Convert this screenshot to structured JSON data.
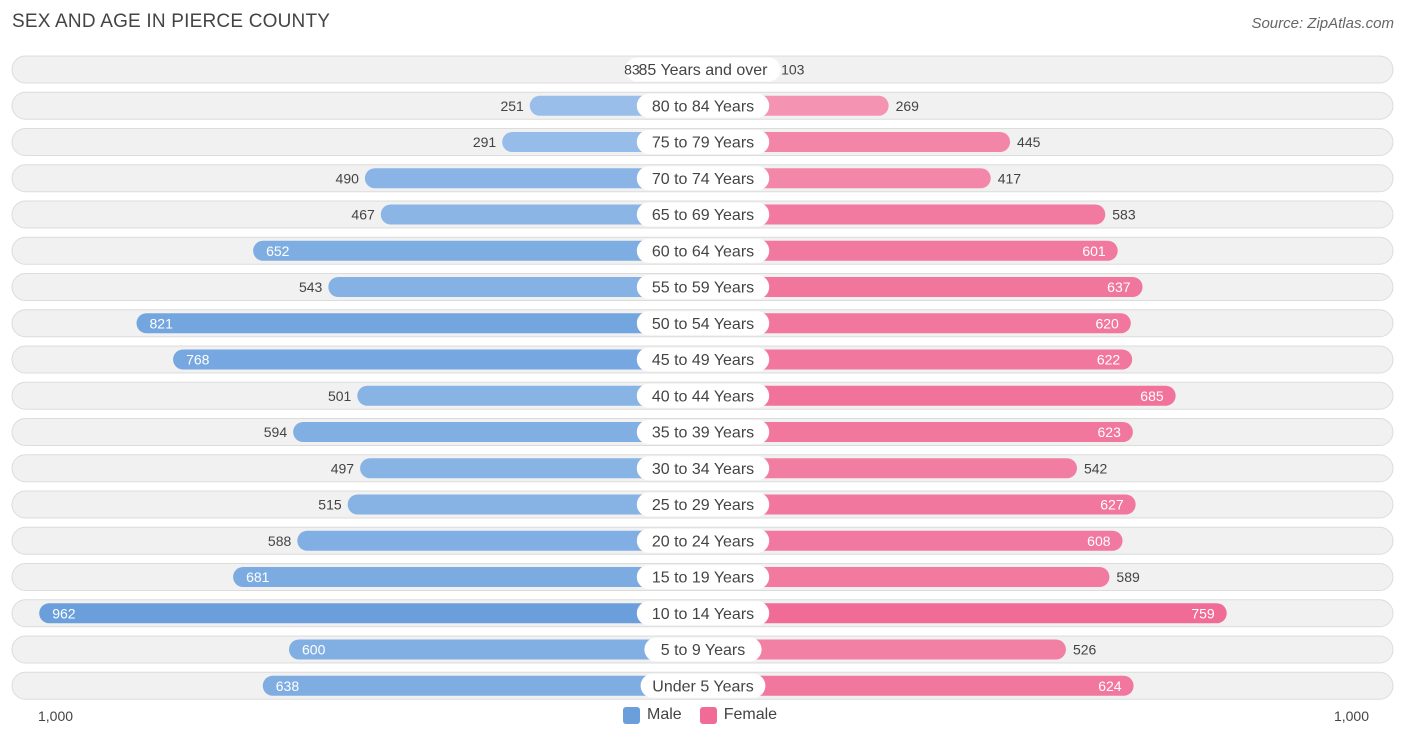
{
  "header": {
    "title": "SEX AND AGE IN PIERCE COUNTY",
    "source": "Source: ZipAtlas.com"
  },
  "colors": {
    "male": "#6a9fdc",
    "male_light": "#a9c9ee",
    "female": "#f06c97",
    "female_light": "#f7a9c2"
  },
  "chart_data": {
    "type": "bar",
    "orientation": "horizontal-diverging",
    "title": "SEX AND AGE IN PIERCE COUNTY",
    "categories": [
      "85 Years and over",
      "80 to 84 Years",
      "75 to 79 Years",
      "70 to 74 Years",
      "65 to 69 Years",
      "60 to 64 Years",
      "55 to 59 Years",
      "50 to 54 Years",
      "45 to 49 Years",
      "40 to 44 Years",
      "35 to 39 Years",
      "30 to 34 Years",
      "25 to 29 Years",
      "20 to 24 Years",
      "15 to 19 Years",
      "10 to 14 Years",
      "5 to 9 Years",
      "Under 5 Years"
    ],
    "series": [
      {
        "name": "Male",
        "values": [
          83,
          251,
          291,
          490,
          467,
          652,
          543,
          821,
          768,
          501,
          594,
          497,
          515,
          588,
          681,
          962,
          600,
          638
        ]
      },
      {
        "name": "Female",
        "values": [
          103,
          269,
          445,
          417,
          583,
          601,
          637,
          620,
          622,
          685,
          623,
          542,
          627,
          608,
          589,
          759,
          526,
          624
        ]
      }
    ],
    "xlim": [
      -1000,
      1000
    ],
    "axis_labels": {
      "left": "1,000",
      "right": "1,000"
    },
    "legend_position": "bottom-center"
  }
}
